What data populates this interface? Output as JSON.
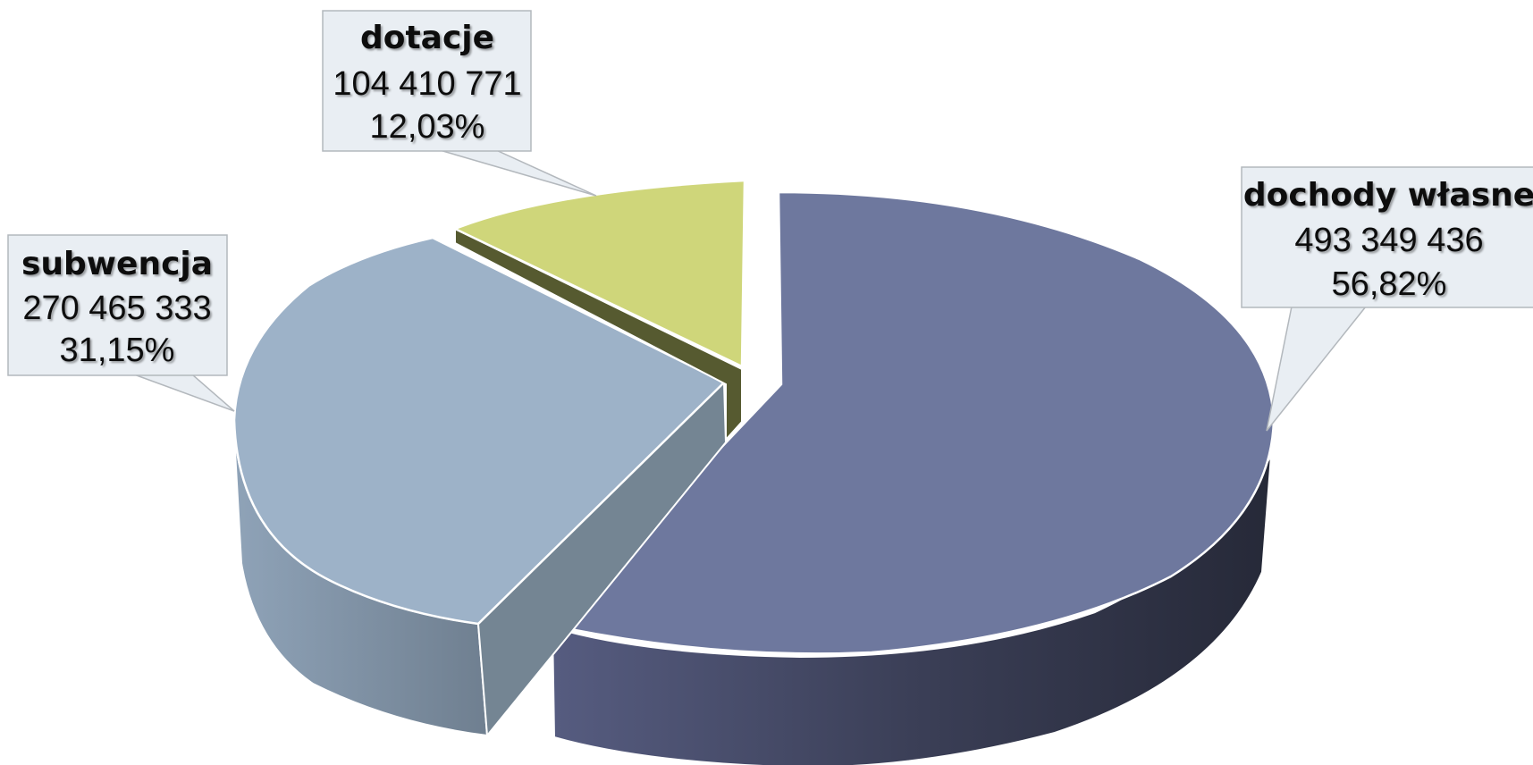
{
  "chart_data": {
    "type": "pie",
    "title": "",
    "three_d": true,
    "slices": [
      {
        "name": "dochody własne",
        "value_label": "493 349 436",
        "percent_label": "56,82%",
        "value": 493349436,
        "percent": 56.82,
        "color": "#6e789e",
        "side_color": "#3d4259"
      },
      {
        "name": "subwencja",
        "value_label": "270 465 333",
        "percent_label": "31,15%",
        "value": 270465333,
        "percent": 31.15,
        "color": "#9db2c8",
        "side_color": "#7a8d9f"
      },
      {
        "name": "dotacje",
        "value_label": "104 410 771",
        "percent_label": "12,03%",
        "value": 104410771,
        "percent": 12.03,
        "color": "#cfd67a",
        "side_color": "#565a30"
      }
    ]
  }
}
